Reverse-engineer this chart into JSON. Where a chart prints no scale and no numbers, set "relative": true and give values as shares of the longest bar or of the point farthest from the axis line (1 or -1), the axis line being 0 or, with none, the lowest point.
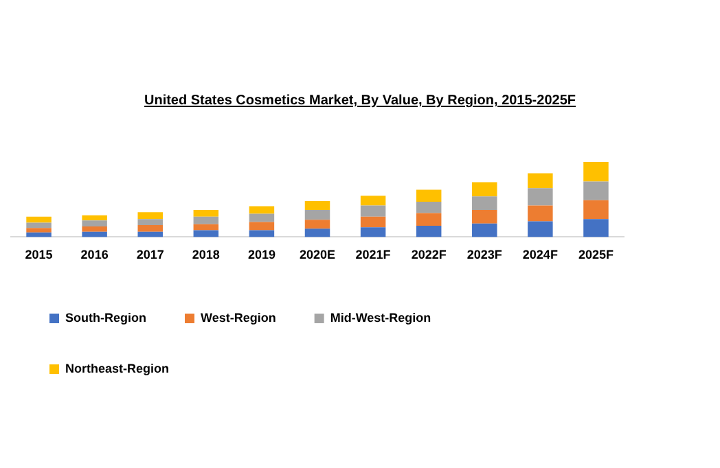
{
  "chart_data": {
    "type": "bar",
    "title": "United States Cosmetics Market, By Value, By Region, 2015-2025F",
    "categories": [
      "2015",
      "2016",
      "2017",
      "2018",
      "2019",
      "2020E",
      "2021F",
      "2022F",
      "2023F",
      "2024F",
      "2025F"
    ],
    "relative": true,
    "stacked": true,
    "grid": false,
    "legend": "bottom",
    "series": [
      {
        "name": "South-Region",
        "color": "#4472c4",
        "values": [
          0.06,
          0.07,
          0.07,
          0.09,
          0.09,
          0.11,
          0.13,
          0.15,
          0.18,
          0.21,
          0.24
        ]
      },
      {
        "name": "West-Region",
        "color": "#ed7d31",
        "values": [
          0.06,
          0.07,
          0.09,
          0.08,
          0.11,
          0.12,
          0.14,
          0.17,
          0.18,
          0.21,
          0.25
        ]
      },
      {
        "name": "Mid-West-Region",
        "color": "#a5a5a5",
        "values": [
          0.07,
          0.08,
          0.08,
          0.1,
          0.11,
          0.13,
          0.15,
          0.15,
          0.18,
          0.23,
          0.25
        ]
      },
      {
        "name": "Northeast-Region",
        "color": "#ffc000",
        "values": [
          0.08,
          0.07,
          0.09,
          0.09,
          0.1,
          0.12,
          0.13,
          0.16,
          0.19,
          0.2,
          0.26
        ]
      }
    ]
  }
}
